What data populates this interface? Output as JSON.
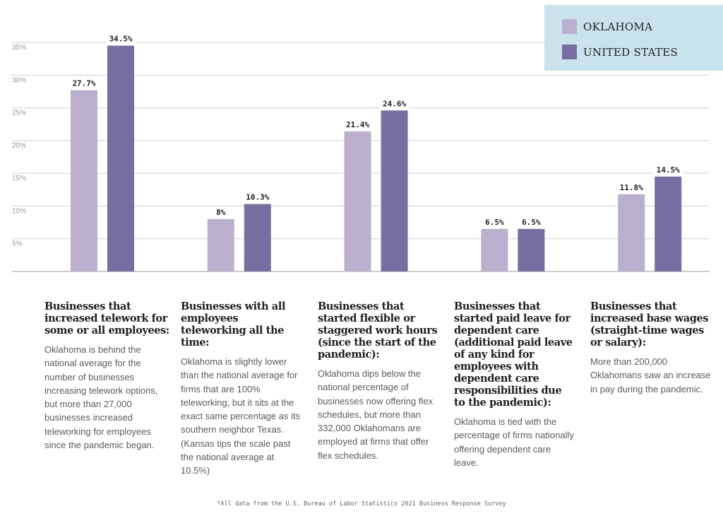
{
  "legend": {
    "items": [
      {
        "label": "OKLAHOMA",
        "color": "#bab0cd"
      },
      {
        "label": "UNITED STATES",
        "color": "#786da1"
      }
    ]
  },
  "chart_data": {
    "type": "bar",
    "title": "",
    "xlabel": "",
    "ylabel": "",
    "ylim": [
      0,
      35
    ],
    "yticks": [
      5,
      10,
      15,
      20,
      25,
      30,
      35
    ],
    "ytick_labels": [
      "5%",
      "10%",
      "15%",
      "20%",
      "25%",
      "30%",
      "35%"
    ],
    "grid": true,
    "legend_position": "top-right",
    "categories": [
      "Increased telework",
      "All employees teleworking",
      "Flexible/staggered hours",
      "Paid leave for dependent care",
      "Increased base wages"
    ],
    "series": [
      {
        "name": "OKLAHOMA",
        "color": "#bab0cd",
        "values": [
          27.7,
          8,
          21.4,
          6.5,
          11.8
        ],
        "labels": [
          "27.7%",
          "8%",
          "21.4%",
          "6.5%",
          "11.8%"
        ]
      },
      {
        "name": "UNITED STATES",
        "color": "#786da1",
        "values": [
          34.5,
          10.3,
          24.6,
          6.5,
          14.5
        ],
        "labels": [
          "34.5%",
          "10.3%",
          "24.6%",
          "6.5%",
          "14.5%"
        ]
      }
    ]
  },
  "descriptions": [
    {
      "title": "Businesses that increased telework for some or all employees:",
      "body": "Oklahoma is behind the national average for the number of businesses increasing telework options, but more than 27,000 businesses increased teleworking for employees since the pandemic began."
    },
    {
      "title": "Businesses with all employees teleworking all the time:",
      "body": "Oklahoma is slightly lower than the national average for firms that are 100% teleworking, but it sits at the exact same percentage as its southern neighbor Texas. (Kansas tips the scale past the national average at 10.5%)"
    },
    {
      "title": "Businesses that started flexible or staggered work hours (since the start of the pandemic):",
      "body": "Oklahoma dips below the national percentage of businesses now offering flex schedules, but more than 332,000 Oklahomans are employed at firms that offer flex schedules."
    },
    {
      "title": "Businesses that started paid leave for dependent care (additional paid leave of any kind for employees with dependent care responsibilities due to the pandemic):",
      "body": "Oklahoma is tied with the percentage of firms nationally offering dependent care leave."
    },
    {
      "title": "Businesses that increased base wages (straight-time wages or salary):",
      "body": "More than 200,000 Oklahomans saw an increase in pay during the pandemic."
    }
  ],
  "footnote": "*All data from the U.S. Bureau of Labor Statistics 2021 Business Response Survey"
}
